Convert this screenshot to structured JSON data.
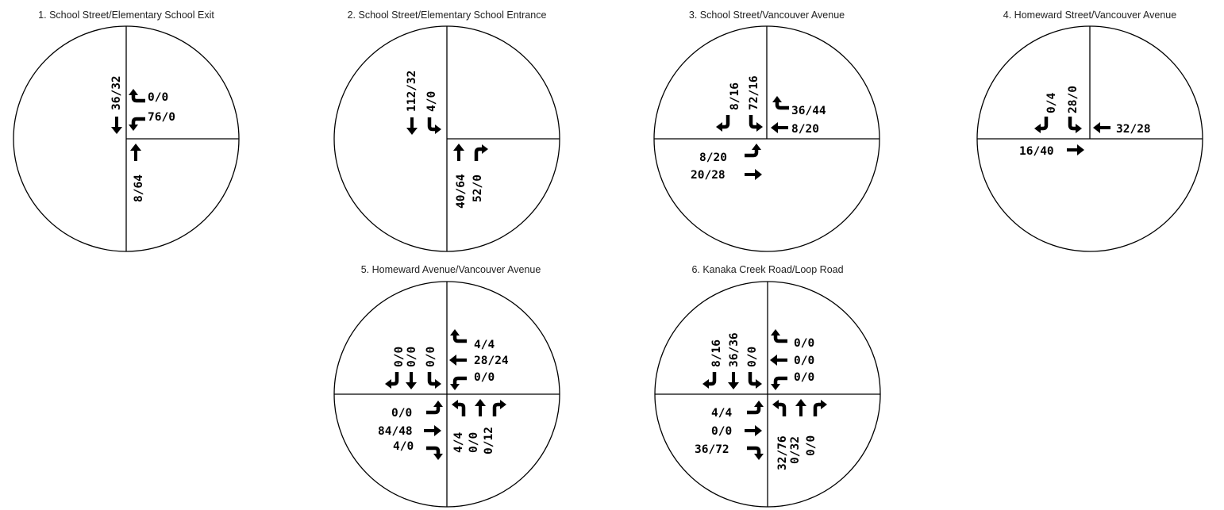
{
  "intersections": [
    {
      "title": "1. School Street/Elementary School Exit",
      "volumes": {
        "sb_through": "36/32",
        "wb_right": "0/0",
        "wb_left": "76/0",
        "nb_through": "8/64"
      }
    },
    {
      "title": "2. School Street/Elementary School Entrance",
      "volumes": {
        "sb_through": "112/32",
        "sb_left": "4/0",
        "nb_through": "40/64",
        "nb_right": "52/0"
      }
    },
    {
      "title": "3. School Street/Vancouver Avenue",
      "volumes": {
        "sb_right": "8/16",
        "sb_left": "72/16",
        "wb_right": "36/44",
        "wb_through": "8/20",
        "eb_left": "8/20",
        "eb_through": "20/28"
      }
    },
    {
      "title": "4. Homeward Street/Vancouver Avenue",
      "volumes": {
        "sb_right": "0/4",
        "sb_left": "28/0",
        "wb_through": "32/28",
        "eb_through": "16/40"
      }
    },
    {
      "title": "5. Homeward Avenue/Vancouver Avenue",
      "volumes": {
        "sb_right": "0/0",
        "sb_through": "0/0",
        "sb_left": "0/0",
        "wb_right": "4/4",
        "wb_through": "28/24",
        "wb_left": "0/0",
        "eb_left": "0/0",
        "eb_through": "84/48",
        "eb_right": "4/0",
        "nb_left": "4/4",
        "nb_through": "0/0",
        "nb_right": "0/12"
      }
    },
    {
      "title": "6. Kanaka Creek Road/Loop Road",
      "volumes": {
        "sb_right": "8/16",
        "sb_through": "36/36",
        "sb_left": "0/0",
        "wb_right": "0/0",
        "wb_through": "0/0",
        "wb_left": "0/0",
        "eb_left": "4/4",
        "eb_through": "0/0",
        "eb_right": "36/72",
        "nb_left": "32/76",
        "nb_through": "0/32",
        "nb_right": "0/0"
      }
    }
  ]
}
